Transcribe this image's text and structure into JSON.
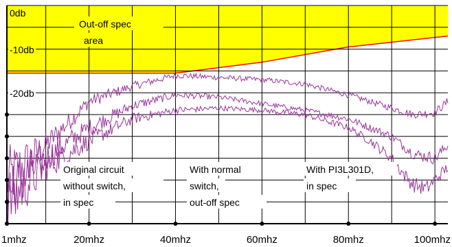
{
  "chart_data": {
    "type": "line",
    "title": "",
    "xlabel": "",
    "ylabel": "",
    "x_ticks": [
      {
        "value": 1,
        "label": "1mhz"
      },
      {
        "value": 20,
        "label": "20mhz"
      },
      {
        "value": 40,
        "label": "40mhz"
      },
      {
        "value": 60,
        "label": "60mhz"
      },
      {
        "value": 80,
        "label": "80mhz"
      },
      {
        "value": 100,
        "label": "100mhz"
      }
    ],
    "y_ticks": [
      {
        "value": 0,
        "label": "0db"
      },
      {
        "value": -10,
        "label": "-10db"
      },
      {
        "value": -20,
        "label": "-20db"
      }
    ],
    "xlim": [
      1,
      103
    ],
    "ylim": [
      -50,
      0
    ],
    "grid": true,
    "spec_limit": {
      "x": [
        1,
        20,
        40,
        60,
        80,
        103
      ],
      "y": [
        -15.5,
        -15.5,
        -15.5,
        -13.0,
        -9.5,
        -7.0
      ],
      "fill_color": "#ffff00",
      "line_color": "#ff0000"
    },
    "series_color": "#993399",
    "series": [
      {
        "x": [
          1,
          10,
          20,
          30,
          40,
          50,
          60,
          70,
          80,
          85,
          90,
          95,
          100,
          103
        ],
        "y": [
          -40.0,
          -32.0,
          -22.0,
          -18.5,
          -16.0,
          -16.5,
          -17.0,
          -18.0,
          -20.5,
          -22.0,
          -23.5,
          -25.0,
          -24.5,
          -22.0
        ],
        "noise": [
          8.0,
          3.0,
          1.5,
          1.0,
          0.7,
          0.6,
          0.6,
          0.6,
          0.7,
          0.7,
          0.8,
          0.9,
          1.0,
          1.0
        ]
      },
      {
        "x": [
          1,
          10,
          20,
          30,
          40,
          50,
          60,
          70,
          80,
          90,
          95,
          100,
          103
        ],
        "y": [
          -43.0,
          -35.0,
          -28.0,
          -23.0,
          -20.5,
          -21.0,
          -22.5,
          -24.0,
          -26.0,
          -30.0,
          -34.0,
          -35.0,
          -32.0
        ],
        "noise": [
          8.0,
          3.5,
          2.0,
          1.2,
          0.8,
          0.6,
          0.6,
          0.6,
          0.8,
          1.0,
          1.3,
          1.5,
          1.2
        ]
      },
      {
        "x": [
          1,
          10,
          20,
          30,
          40,
          50,
          60,
          70,
          80,
          85,
          90,
          93,
          95,
          98,
          100,
          103
        ],
        "y": [
          -45.0,
          -37.0,
          -31.0,
          -26.0,
          -24.0,
          -23.5,
          -24.0,
          -25.0,
          -28.0,
          -31.0,
          -35.0,
          -39.0,
          -41.0,
          -42.0,
          -40.0,
          -37.0
        ],
        "noise": [
          8.0,
          3.5,
          2.0,
          1.3,
          0.8,
          0.6,
          0.6,
          0.7,
          0.8,
          1.0,
          1.3,
          1.6,
          1.8,
          1.8,
          1.6,
          1.3
        ]
      }
    ],
    "annotations": {
      "out_of_spec": [
        "Out-off spec",
        "area"
      ],
      "original": [
        "Original circuit",
        "without switch,",
        "in spec"
      ],
      "normal": [
        "With normal",
        "switch,",
        "out-off spec"
      ],
      "pi3l": [
        "With PI3L301D,",
        "in spec"
      ]
    }
  }
}
